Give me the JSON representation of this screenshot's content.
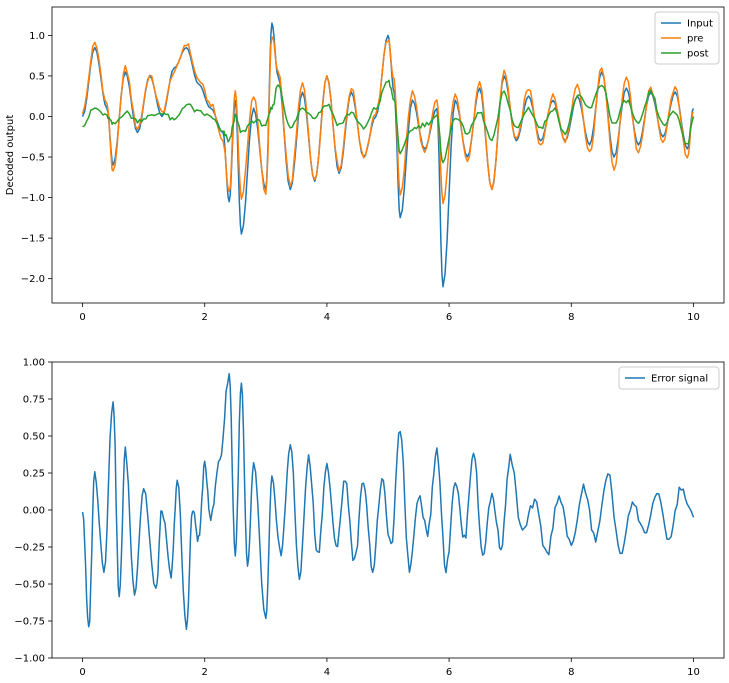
{
  "chart_data": [
    {
      "type": "line",
      "title": "",
      "xlabel": "",
      "ylabel": "Decoded output",
      "xlim": [
        -0.5,
        10.5
      ],
      "ylim": [
        -2.3,
        1.35
      ],
      "xticks": [
        0,
        2,
        4,
        6,
        8,
        10
      ],
      "xtick_labels": [
        "0",
        "2",
        "4",
        "6",
        "8",
        "10"
      ],
      "yticks": [
        1.0,
        0.5,
        0.0,
        -0.5,
        -1.0,
        -1.5,
        -2.0
      ],
      "ytick_labels": [
        "1.0",
        "0.5",
        "0.0",
        "−0.5",
        "−1.0",
        "−1.5",
        "−2.0"
      ],
      "grid": false,
      "legend_position": "top-right",
      "x": [
        0.0,
        0.2,
        0.4,
        0.5,
        0.7,
        0.9,
        1.1,
        1.3,
        1.5,
        1.7,
        1.9,
        2.1,
        2.3,
        2.4,
        2.5,
        2.6,
        2.8,
        3.0,
        3.1,
        3.2,
        3.4,
        3.6,
        3.8,
        4.0,
        4.2,
        4.4,
        4.6,
        4.8,
        5.0,
        5.1,
        5.2,
        5.4,
        5.6,
        5.8,
        5.9,
        6.1,
        6.3,
        6.5,
        6.7,
        6.9,
        7.1,
        7.3,
        7.5,
        7.7,
        7.9,
        8.1,
        8.3,
        8.5,
        8.7,
        8.9,
        9.1,
        9.3,
        9.5,
        9.7,
        9.9,
        10.0
      ],
      "series": [
        {
          "name": "Input",
          "color": "#1f77b4",
          "values": [
            0.0,
            0.85,
            0.1,
            -0.6,
            0.55,
            -0.2,
            0.5,
            0.0,
            0.6,
            0.85,
            0.4,
            0.1,
            -0.2,
            -1.05,
            0.2,
            -1.45,
            0.1,
            -0.9,
            1.15,
            0.5,
            -0.9,
            0.3,
            -0.8,
            0.5,
            -0.7,
            0.3,
            -0.5,
            0.0,
            1.0,
            0.3,
            -1.25,
            0.2,
            -0.4,
            0.1,
            -2.1,
            0.2,
            -0.5,
            0.35,
            -0.9,
            0.5,
            -0.3,
            0.25,
            -0.3,
            0.2,
            -0.3,
            0.25,
            -0.35,
            0.55,
            -0.5,
            0.35,
            -0.35,
            0.3,
            -0.25,
            0.3,
            -0.4,
            0.1
          ]
        },
        {
          "name": "pre",
          "color": "#ff7f0e",
          "values": [
            0.05,
            0.9,
            0.15,
            -0.7,
            0.6,
            -0.15,
            0.5,
            0.05,
            0.55,
            0.9,
            0.45,
            0.15,
            -0.3,
            -0.95,
            0.3,
            -1.0,
            0.25,
            -0.95,
            1.0,
            0.55,
            -0.85,
            0.4,
            -0.8,
            0.5,
            -0.65,
            0.35,
            -0.5,
            0.05,
            0.95,
            0.45,
            -0.95,
            0.3,
            -0.45,
            0.2,
            -1.05,
            0.3,
            -0.55,
            0.4,
            -0.9,
            0.55,
            -0.3,
            0.35,
            -0.35,
            0.25,
            -0.3,
            0.4,
            -0.45,
            0.6,
            -0.65,
            0.5,
            -0.45,
            0.35,
            -0.3,
            0.35,
            -0.5,
            0.05
          ]
        },
        {
          "name": "post",
          "color": "#2ca02c",
          "values": [
            -0.1,
            0.1,
            0.0,
            -0.1,
            0.05,
            -0.05,
            0.0,
            0.05,
            -0.05,
            0.15,
            0.05,
            0.0,
            -0.2,
            -0.3,
            0.0,
            -0.2,
            -0.05,
            -0.1,
            0.1,
            0.4,
            -0.15,
            0.1,
            0.0,
            0.15,
            -0.1,
            0.05,
            -0.15,
            0.1,
            0.45,
            0.2,
            -0.45,
            -0.15,
            -0.1,
            0.0,
            -0.55,
            0.0,
            -0.2,
            0.05,
            -0.3,
            0.3,
            -0.15,
            0.1,
            -0.15,
            0.1,
            -0.2,
            0.25,
            0.1,
            0.4,
            -0.1,
            0.2,
            -0.1,
            0.3,
            -0.1,
            0.05,
            -0.35,
            0.0
          ]
        }
      ]
    },
    {
      "type": "line",
      "title": "",
      "xlabel": "",
      "ylabel": "",
      "xlim": [
        -0.5,
        10.5
      ],
      "ylim": [
        -1.0,
        1.0
      ],
      "xticks": [
        0,
        2,
        4,
        6,
        8,
        10
      ],
      "xtick_labels": [
        "0",
        "2",
        "4",
        "6",
        "8",
        "10"
      ],
      "yticks": [
        1.0,
        0.75,
        0.5,
        0.25,
        0.0,
        -0.25,
        -0.5,
        -0.75,
        -1.0
      ],
      "ytick_labels": [
        "1.00",
        "0.75",
        "0.50",
        "0.25",
        "0.00",
        "−0.25",
        "−0.50",
        "−0.75",
        "−1.00"
      ],
      "grid": false,
      "legend_position": "top-right",
      "x": [
        0.0,
        0.1,
        0.2,
        0.35,
        0.5,
        0.6,
        0.7,
        0.85,
        1.0,
        1.2,
        1.3,
        1.45,
        1.55,
        1.7,
        1.8,
        1.9,
        2.0,
        2.1,
        2.25,
        2.4,
        2.5,
        2.6,
        2.7,
        2.8,
        3.0,
        3.1,
        3.25,
        3.4,
        3.55,
        3.7,
        3.85,
        4.0,
        4.15,
        4.3,
        4.45,
        4.6,
        4.75,
        4.9,
        5.05,
        5.2,
        5.35,
        5.5,
        5.65,
        5.8,
        5.95,
        6.1,
        6.25,
        6.4,
        6.55,
        6.7,
        6.85,
        7.0,
        7.2,
        7.4,
        7.6,
        7.8,
        8.0,
        8.2,
        8.4,
        8.6,
        8.8,
        9.0,
        9.2,
        9.4,
        9.6,
        9.8,
        10.0
      ],
      "series": [
        {
          "name": "Error signal",
          "color": "#1f77b4",
          "values": [
            0.0,
            -0.8,
            0.25,
            -0.4,
            0.75,
            -0.6,
            0.4,
            -0.55,
            0.15,
            -0.55,
            0.0,
            -0.45,
            0.2,
            -0.8,
            0.0,
            -0.2,
            0.3,
            -0.05,
            0.35,
            0.92,
            -0.3,
            0.85,
            -0.4,
            0.3,
            -0.75,
            0.2,
            -0.3,
            0.45,
            -0.45,
            0.35,
            -0.3,
            0.3,
            -0.25,
            0.2,
            -0.35,
            0.2,
            -0.4,
            0.2,
            -0.25,
            0.55,
            -0.4,
            0.1,
            -0.15,
            0.4,
            -0.4,
            0.2,
            -0.2,
            0.4,
            -0.3,
            0.1,
            -0.25,
            0.35,
            -0.15,
            0.05,
            -0.3,
            0.1,
            -0.25,
            0.15,
            -0.2,
            0.25,
            -0.3,
            0.05,
            -0.15,
            0.1,
            -0.2,
            0.15,
            -0.05
          ]
        }
      ]
    }
  ]
}
